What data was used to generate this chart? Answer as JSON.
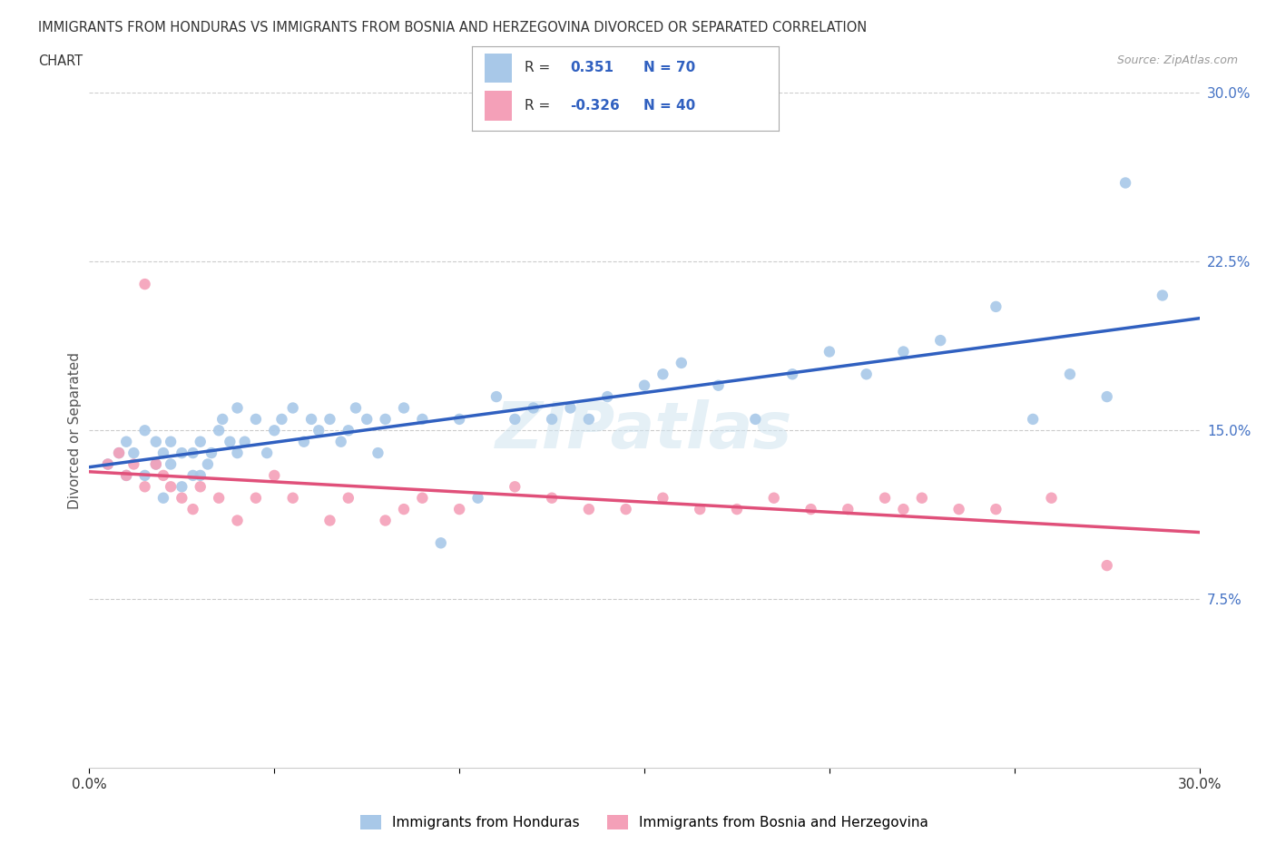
{
  "title_line1": "IMMIGRANTS FROM HONDURAS VS IMMIGRANTS FROM BOSNIA AND HERZEGOVINA DIVORCED OR SEPARATED CORRELATION",
  "title_line2": "CHART",
  "source": "Source: ZipAtlas.com",
  "ylabel": "Divorced or Separated",
  "xlim": [
    0.0,
    0.3
  ],
  "ylim": [
    0.0,
    0.3
  ],
  "y_ticks": [
    0.075,
    0.15,
    0.225,
    0.3
  ],
  "y_tick_labels": [
    "7.5%",
    "15.0%",
    "22.5%",
    "30.0%"
  ],
  "legend_label1": "Immigrants from Honduras",
  "legend_label2": "Immigrants from Bosnia and Herzegovina",
  "R1": 0.351,
  "N1": 70,
  "R2": -0.326,
  "N2": 40,
  "color_blue": "#a8c8e8",
  "color_pink": "#f4a0b8",
  "line_color_blue": "#3060c0",
  "line_color_pink": "#e0507a",
  "watermark": "ZIPatlas",
  "honduras_x": [
    0.005,
    0.008,
    0.01,
    0.01,
    0.012,
    0.015,
    0.015,
    0.018,
    0.018,
    0.02,
    0.02,
    0.022,
    0.022,
    0.025,
    0.025,
    0.028,
    0.028,
    0.03,
    0.03,
    0.032,
    0.033,
    0.035,
    0.036,
    0.038,
    0.04,
    0.04,
    0.042,
    0.045,
    0.048,
    0.05,
    0.052,
    0.055,
    0.058,
    0.06,
    0.062,
    0.065,
    0.068,
    0.07,
    0.072,
    0.075,
    0.078,
    0.08,
    0.085,
    0.09,
    0.095,
    0.1,
    0.105,
    0.11,
    0.115,
    0.12,
    0.125,
    0.13,
    0.135,
    0.14,
    0.15,
    0.155,
    0.16,
    0.17,
    0.18,
    0.19,
    0.2,
    0.21,
    0.22,
    0.23,
    0.245,
    0.255,
    0.265,
    0.275,
    0.28,
    0.29
  ],
  "honduras_y": [
    0.135,
    0.14,
    0.13,
    0.145,
    0.14,
    0.13,
    0.15,
    0.135,
    0.145,
    0.12,
    0.14,
    0.135,
    0.145,
    0.125,
    0.14,
    0.13,
    0.14,
    0.13,
    0.145,
    0.135,
    0.14,
    0.15,
    0.155,
    0.145,
    0.16,
    0.14,
    0.145,
    0.155,
    0.14,
    0.15,
    0.155,
    0.16,
    0.145,
    0.155,
    0.15,
    0.155,
    0.145,
    0.15,
    0.16,
    0.155,
    0.14,
    0.155,
    0.16,
    0.155,
    0.1,
    0.155,
    0.12,
    0.165,
    0.155,
    0.16,
    0.155,
    0.16,
    0.155,
    0.165,
    0.17,
    0.175,
    0.18,
    0.17,
    0.155,
    0.175,
    0.185,
    0.175,
    0.185,
    0.19,
    0.205,
    0.155,
    0.175,
    0.165,
    0.26,
    0.21
  ],
  "bosnia_x": [
    0.005,
    0.008,
    0.01,
    0.012,
    0.015,
    0.015,
    0.018,
    0.02,
    0.022,
    0.025,
    0.028,
    0.03,
    0.035,
    0.04,
    0.045,
    0.05,
    0.055,
    0.065,
    0.07,
    0.08,
    0.085,
    0.09,
    0.1,
    0.115,
    0.125,
    0.135,
    0.145,
    0.155,
    0.165,
    0.175,
    0.185,
    0.195,
    0.205,
    0.215,
    0.22,
    0.225,
    0.235,
    0.245,
    0.26,
    0.275
  ],
  "bosnia_y": [
    0.135,
    0.14,
    0.13,
    0.135,
    0.125,
    0.215,
    0.135,
    0.13,
    0.125,
    0.12,
    0.115,
    0.125,
    0.12,
    0.11,
    0.12,
    0.13,
    0.12,
    0.11,
    0.12,
    0.11,
    0.115,
    0.12,
    0.115,
    0.125,
    0.12,
    0.115,
    0.115,
    0.12,
    0.115,
    0.115,
    0.12,
    0.115,
    0.115,
    0.12,
    0.115,
    0.12,
    0.115,
    0.115,
    0.12,
    0.09
  ]
}
